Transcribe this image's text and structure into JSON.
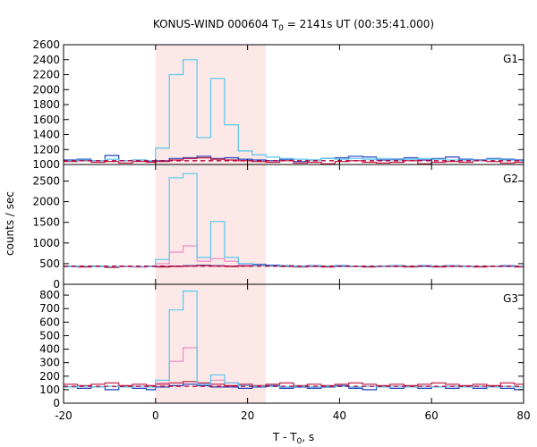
{
  "title": {
    "prefix": "KONUS-WIND 000604 T",
    "sub": "0",
    "suffix": " = 2141s UT (00:35:41.000)"
  },
  "ylabel": "counts / sec",
  "xlabel": {
    "prefix": "T - T",
    "sub": "0",
    "suffix": ", s"
  },
  "colors": {
    "highlight": "#fde8e8",
    "cyan": "#55c6ec",
    "pink": "#e98fc7",
    "blue": "#1f3fbf",
    "red": "#c0143c",
    "dash": "#b8003a"
  },
  "chart_data": [
    {
      "type": "step",
      "panel_label": "G1",
      "xlim": [
        -20,
        80
      ],
      "ylim": [
        1000,
        2600
      ],
      "yticks": [
        1000,
        1200,
        1400,
        1600,
        1800,
        2000,
        2200,
        2400,
        2600
      ],
      "xticks": [
        -20,
        0,
        20,
        40,
        60,
        80
      ],
      "shaded_region": [
        0,
        24
      ],
      "background_level": 1050,
      "series": [
        {
          "color": "blue",
          "edges": [
            -20,
            -17,
            -14,
            -11,
            -8,
            -5,
            -2,
            0,
            3,
            6,
            9,
            12,
            15,
            18,
            21,
            24,
            27,
            30,
            33,
            36,
            39,
            42,
            45,
            48,
            51,
            54,
            57,
            60,
            63,
            66,
            69,
            72,
            75,
            78,
            80
          ],
          "values": [
            1060,
            1070,
            1050,
            1120,
            1050,
            1060,
            1040,
            1050,
            1080,
            1090,
            1110,
            1080,
            1090,
            1070,
            1060,
            1050,
            1070,
            1040,
            1060,
            1080,
            1090,
            1110,
            1100,
            1060,
            1070,
            1090,
            1060,
            1080,
            1100,
            1070,
            1060,
            1080,
            1070,
            1060
          ]
        },
        {
          "color": "red",
          "edges": [
            -20,
            -17,
            -14,
            -11,
            -8,
            -5,
            -2,
            0,
            3,
            6,
            9,
            12,
            15,
            18,
            21,
            24,
            27,
            30,
            33,
            36,
            39,
            42,
            45,
            48,
            51,
            54,
            57,
            60,
            63,
            66,
            69,
            72,
            75,
            78,
            80
          ],
          "values": [
            1040,
            1050,
            1030,
            1040,
            1020,
            1040,
            1030,
            1040,
            1060,
            1080,
            1090,
            1070,
            1060,
            1050,
            1040,
            1030,
            1050,
            1020,
            1030,
            1010,
            1040,
            1050,
            1030,
            1020,
            1030,
            1050,
            1010,
            1030,
            1040,
            1030,
            1050,
            1040,
            1020,
            1030
          ]
        },
        {
          "color": "cyan",
          "edges": [
            -20,
            -17,
            -14,
            -11,
            -8,
            -5,
            -2,
            0,
            3,
            6,
            9,
            12,
            15,
            18,
            21,
            24,
            27,
            30,
            33,
            36,
            39,
            42,
            45,
            48,
            51,
            54,
            57,
            60,
            63,
            66,
            69,
            72,
            75,
            78,
            80
          ],
          "values": [
            1050,
            1060,
            1050,
            1070,
            1050,
            1060,
            1050,
            1220,
            2200,
            2400,
            1360,
            2150,
            1530,
            1180,
            1130,
            1100,
            1080,
            1070,
            1060,
            1080,
            1070,
            1080,
            1070,
            1080,
            1060,
            1070,
            1080,
            1070,
            1060,
            1060,
            1050,
            1070,
            1060,
            1050
          ]
        }
      ]
    },
    {
      "type": "step",
      "panel_label": "G2",
      "xlim": [
        -20,
        80
      ],
      "ylim": [
        0,
        2900
      ],
      "yticks": [
        0,
        500,
        1000,
        1500,
        2000,
        2500
      ],
      "xticks": [
        -20,
        0,
        20,
        40,
        60,
        80
      ],
      "shaded_region": [
        0,
        24
      ],
      "background_level": 440,
      "series": [
        {
          "color": "blue",
          "edges": [
            -20,
            -17,
            -14,
            -11,
            -8,
            -5,
            -2,
            0,
            3,
            6,
            9,
            12,
            15,
            18,
            21,
            24,
            27,
            30,
            33,
            36,
            39,
            42,
            45,
            48,
            51,
            54,
            57,
            60,
            63,
            66,
            69,
            72,
            75,
            78,
            80
          ],
          "values": [
            440,
            430,
            440,
            420,
            440,
            430,
            440,
            430,
            440,
            450,
            460,
            450,
            440,
            460,
            480,
            460,
            450,
            440,
            450,
            440,
            450,
            440,
            430,
            440,
            450,
            440,
            450,
            440,
            450,
            440,
            430,
            440,
            450,
            440
          ]
        },
        {
          "color": "red",
          "edges": [
            -20,
            -17,
            -14,
            -11,
            -8,
            -5,
            -2,
            0,
            3,
            6,
            9,
            12,
            15,
            18,
            21,
            24,
            27,
            30,
            33,
            36,
            39,
            42,
            45,
            48,
            51,
            54,
            57,
            60,
            63,
            66,
            69,
            72,
            75,
            78,
            80
          ],
          "values": [
            430,
            420,
            430,
            410,
            430,
            420,
            430,
            420,
            430,
            440,
            450,
            440,
            430,
            440,
            450,
            440,
            430,
            420,
            430,
            420,
            430,
            430,
            420,
            430,
            430,
            420,
            430,
            420,
            430,
            430,
            420,
            430,
            430,
            420
          ]
        },
        {
          "color": "pink",
          "edges": [
            0,
            3,
            6,
            9,
            12,
            15,
            18,
            21
          ],
          "values": [
            500,
            780,
            930,
            560,
            620,
            560,
            470
          ]
        },
        {
          "color": "cyan",
          "edges": [
            -20,
            -17,
            -14,
            -11,
            -8,
            -5,
            -2,
            0,
            3,
            6,
            9,
            12,
            15,
            18,
            21,
            24,
            27,
            30,
            33,
            36,
            39,
            42,
            45,
            48,
            51,
            54,
            57,
            60,
            63,
            66,
            69,
            72,
            75,
            78,
            80
          ],
          "values": [
            430,
            440,
            430,
            430,
            440,
            430,
            430,
            600,
            2580,
            2680,
            650,
            1520,
            650,
            500,
            450,
            440,
            440,
            430,
            440,
            440,
            430,
            440,
            440,
            430,
            440,
            440,
            430,
            440,
            440,
            430,
            440,
            440,
            430,
            440
          ]
        }
      ]
    },
    {
      "type": "step",
      "panel_label": "G3",
      "xlim": [
        -20,
        80
      ],
      "ylim": [
        0,
        880
      ],
      "yticks": [
        0,
        100,
        200,
        300,
        400,
        500,
        600,
        700,
        800
      ],
      "xticks": [
        -20,
        0,
        20,
        40,
        60,
        80
      ],
      "shaded_region": [
        0,
        24
      ],
      "background_level": 125,
      "series": [
        {
          "color": "blue",
          "edges": [
            -20,
            -17,
            -14,
            -11,
            -8,
            -5,
            -2,
            0,
            3,
            6,
            9,
            12,
            15,
            18,
            21,
            24,
            27,
            30,
            33,
            36,
            39,
            42,
            45,
            48,
            51,
            54,
            57,
            60,
            63,
            66,
            69,
            72,
            75,
            78,
            80
          ],
          "values": [
            120,
            110,
            120,
            100,
            120,
            110,
            100,
            120,
            130,
            140,
            130,
            120,
            120,
            110,
            120,
            130,
            110,
            120,
            110,
            120,
            130,
            110,
            100,
            120,
            110,
            120,
            110,
            120,
            110,
            120,
            110,
            120,
            110,
            100
          ]
        },
        {
          "color": "red",
          "edges": [
            -20,
            -17,
            -14,
            -11,
            -8,
            -5,
            -2,
            0,
            3,
            6,
            9,
            12,
            15,
            18,
            21,
            24,
            27,
            30,
            33,
            36,
            39,
            42,
            45,
            48,
            51,
            54,
            57,
            60,
            63,
            66,
            69,
            72,
            75,
            78,
            80
          ],
          "values": [
            140,
            130,
            140,
            150,
            130,
            140,
            130,
            140,
            150,
            160,
            150,
            140,
            130,
            140,
            130,
            140,
            150,
            130,
            140,
            130,
            140,
            150,
            140,
            130,
            140,
            130,
            140,
            150,
            140,
            130,
            140,
            130,
            150,
            140
          ]
        },
        {
          "color": "pink",
          "edges": [
            0,
            3,
            6,
            9,
            12,
            15,
            18,
            21
          ],
          "values": [
            150,
            310,
            410,
            140,
            170,
            150,
            130
          ]
        },
        {
          "color": "cyan",
          "edges": [
            -20,
            -17,
            -14,
            -11,
            -8,
            -5,
            -2,
            0,
            3,
            6,
            9,
            12,
            15,
            18,
            21,
            24,
            27,
            30,
            33,
            36,
            39,
            42,
            45,
            48,
            51,
            54,
            57,
            60,
            63,
            66,
            69,
            72,
            75,
            78,
            80
          ],
          "values": [
            120,
            125,
            120,
            125,
            120,
            125,
            120,
            170,
            690,
            830,
            140,
            210,
            150,
            130,
            125,
            125,
            120,
            125,
            120,
            125,
            125,
            120,
            125,
            120,
            125,
            120,
            125,
            120,
            125,
            120,
            125,
            120,
            125,
            120
          ]
        }
      ]
    }
  ]
}
